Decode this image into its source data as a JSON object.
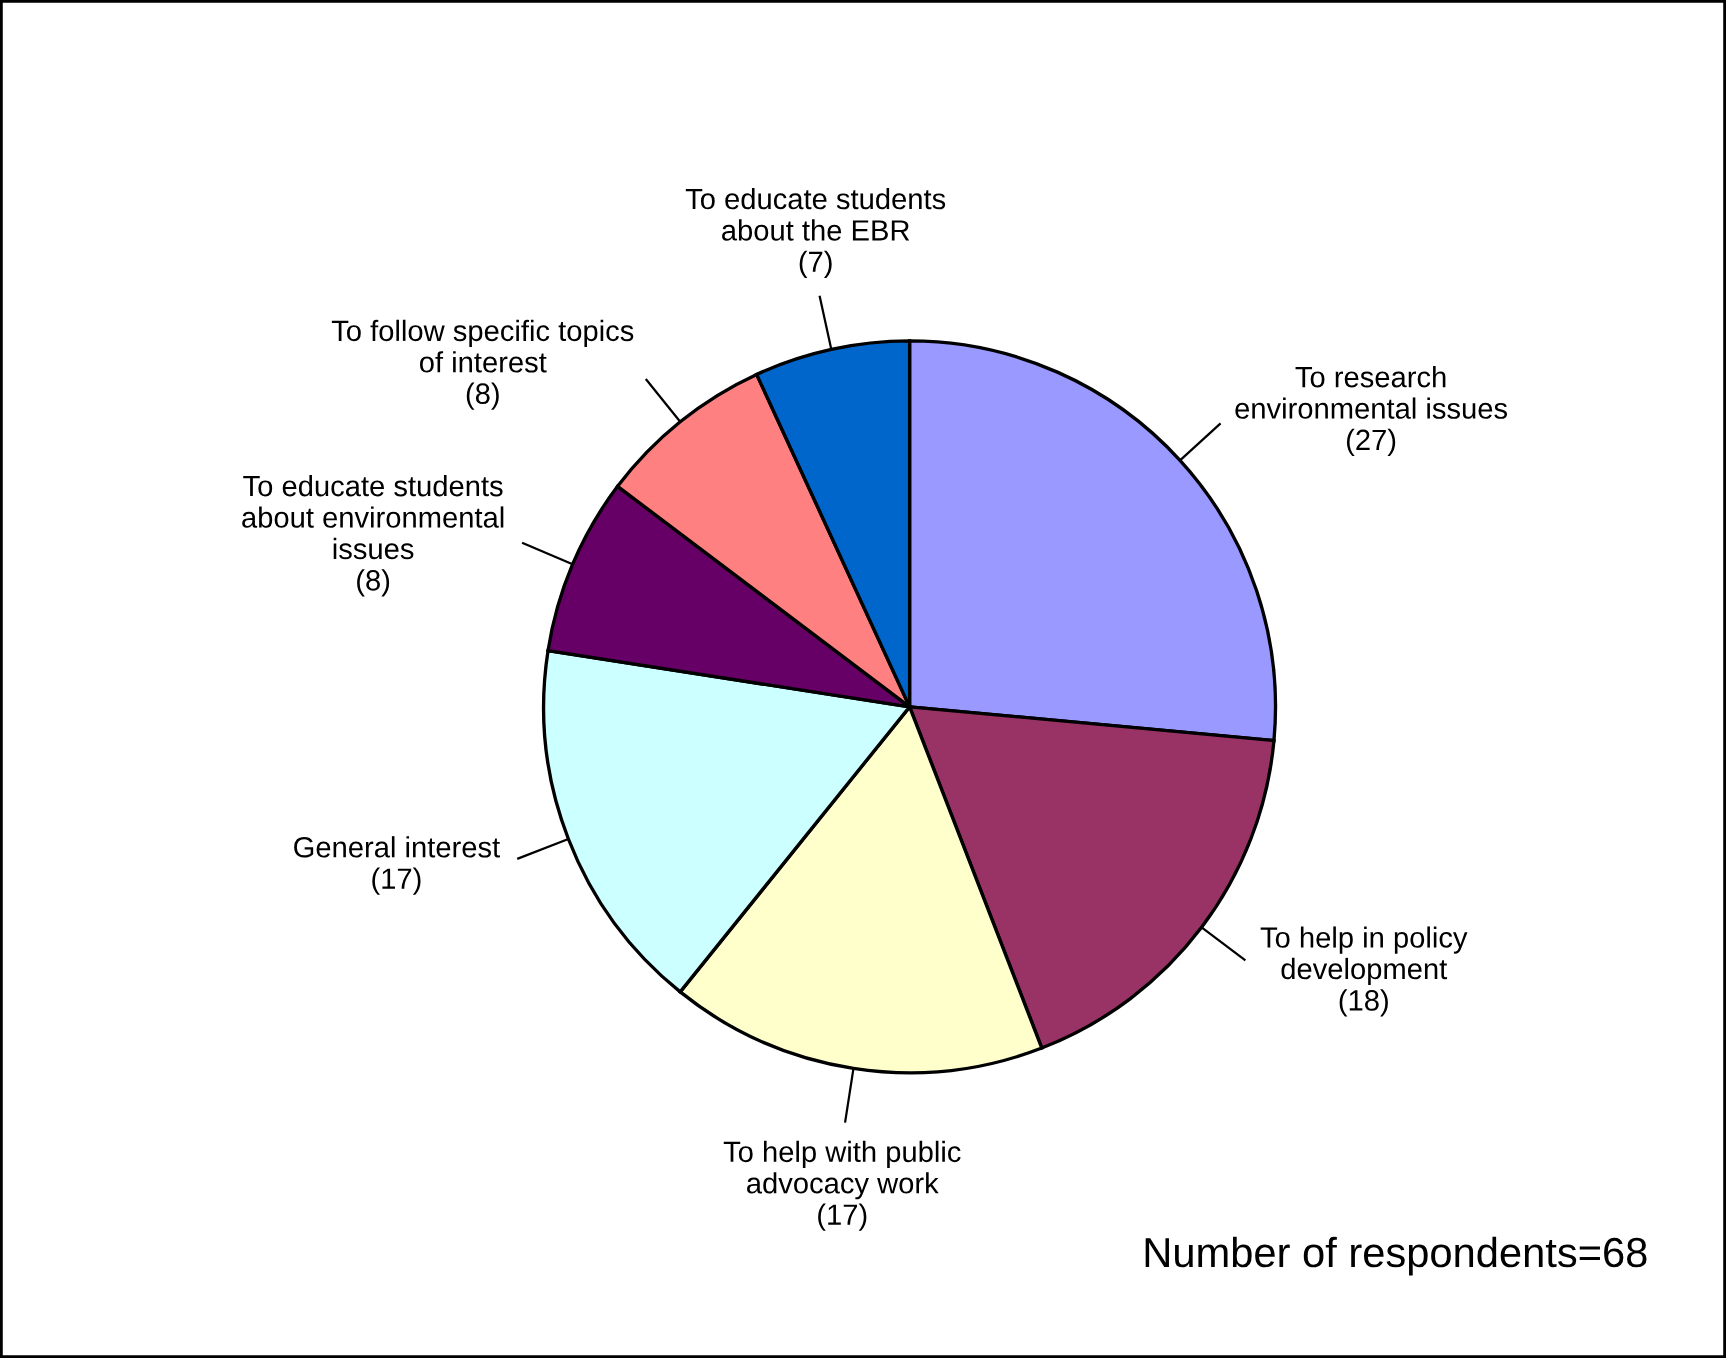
{
  "chart_data": {
    "type": "pie",
    "categories": [
      "To research\nenvironmental issues",
      "To help in policy\ndevelopment",
      "To help with public\nadvocacy work",
      "General interest",
      "To educate students\nabout environmental\nissues",
      "To follow specific topics\nof interest",
      "To educate students\nabout the EBR"
    ],
    "values": [
      27,
      18,
      17,
      17,
      8,
      8,
      7
    ],
    "value_labels": [
      "(27)",
      "(18)",
      "(17)",
      "(17)",
      "(8)",
      "(8)",
      "(7)"
    ],
    "colors": [
      "#9999ff",
      "#993366",
      "#ffffcc",
      "#ccffff",
      "#660066",
      "#ff8080",
      "#0066cc"
    ],
    "annotations": [
      "Number of respondents=68"
    ],
    "legend": false
  }
}
